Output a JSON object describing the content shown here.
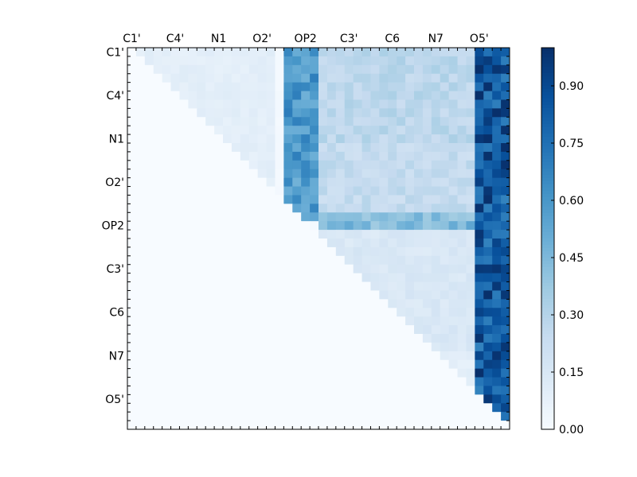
{
  "chart_data": {
    "type": "heatmap",
    "title": "",
    "xlabel": "",
    "ylabel": "",
    "x_tick_labels": [
      "C1'",
      "C4'",
      "N1",
      "O2'",
      "OP2",
      "C3'",
      "C6",
      "N7",
      "O5'"
    ],
    "y_tick_labels": [
      "C1'",
      "C4'",
      "N1",
      "O2'",
      "OP2",
      "C3'",
      "C6",
      "N7",
      "O5'"
    ],
    "grid_size": 44,
    "label_step": 5,
    "colorbar": {
      "colormap": "Blues",
      "vmin": 0.0,
      "vmax": 1.0,
      "ticks": [
        "0.00",
        "0.15",
        "0.30",
        "0.45",
        "0.60",
        "0.75",
        "0.90"
      ]
    },
    "matrix_description": "upper-triangular matrix; lower triangle ~0",
    "regions": [
      {
        "rows": [
          0,
          17
        ],
        "cols": [
          1,
          16
        ],
        "value": 0.1
      },
      {
        "rows": [
          0,
          19
        ],
        "cols": [
          18,
          21
        ],
        "value": 0.6
      },
      {
        "rows": [
          0,
          10
        ],
        "cols": [
          22,
          39
        ],
        "value": 0.28
      },
      {
        "rows": [
          11,
          18
        ],
        "cols": [
          22,
          39
        ],
        "value": 0.25
      },
      {
        "rows": [
          0,
          43
        ],
        "cols": [
          40,
          43
        ],
        "value": 0.85
      },
      {
        "rows": [
          19,
          20
        ],
        "cols": [
          22,
          39
        ],
        "value": 0.45
      },
      {
        "rows": [
          21,
          34
        ],
        "cols": [
          22,
          39
        ],
        "value": 0.15
      },
      {
        "rows": [
          35,
          43
        ],
        "cols": [
          22,
          39
        ],
        "value": 0.1
      }
    ]
  }
}
